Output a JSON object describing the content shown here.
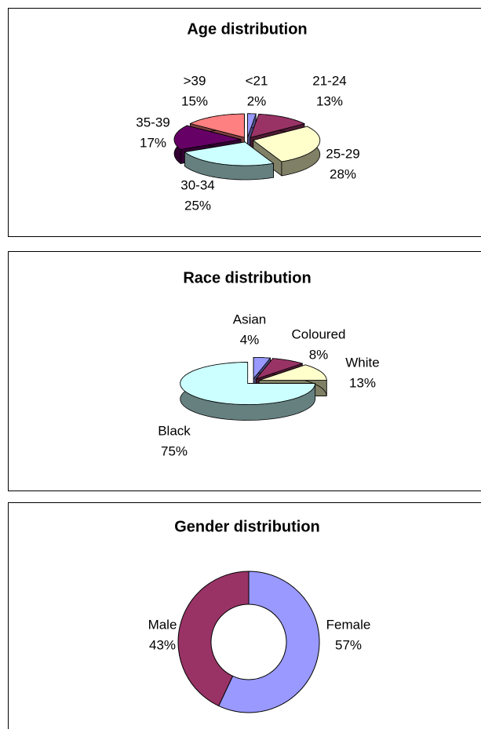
{
  "chart_data": [
    {
      "type": "pie3d",
      "title": "Age distribution",
      "categories": [
        "<21",
        "21-24",
        "25-29",
        "30-34",
        "35-39",
        ">39"
      ],
      "values": [
        2,
        13,
        28,
        25,
        17,
        15
      ],
      "value_labels": [
        "2%",
        "13%",
        "28%",
        "25%",
        "17%",
        "15%"
      ],
      "colors": [
        "#9999ff",
        "#993366",
        "#ffffcc",
        "#ccffff",
        "#660066",
        "#ff8080"
      ]
    },
    {
      "type": "pie3d",
      "title": "Race distribution",
      "categories": [
        "Asian",
        "Coloured",
        "White",
        "Black"
      ],
      "values": [
        4,
        8,
        13,
        75
      ],
      "value_labels": [
        "4%",
        "8%",
        "13%",
        "75%"
      ],
      "colors": [
        "#9999ff",
        "#993366",
        "#ffffcc",
        "#ccffff"
      ]
    },
    {
      "type": "donut",
      "title": "Gender distribution",
      "categories": [
        "Female",
        "Male"
      ],
      "values": [
        57,
        43
      ],
      "value_labels": [
        "57%",
        "43%"
      ],
      "colors": [
        "#9999ff",
        "#993366"
      ]
    }
  ]
}
